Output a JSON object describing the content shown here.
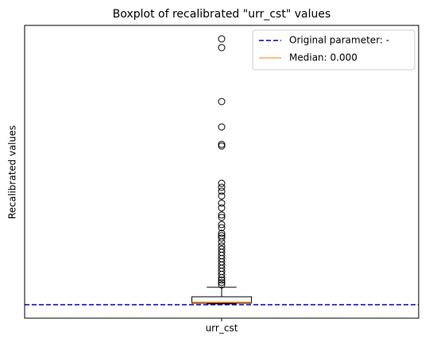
{
  "chart_data": {
    "type": "box",
    "title": "Boxplot of recalibrated \"urr_cst\" values",
    "ylabel": "Recalibrated values",
    "categories": [
      "urr_cst"
    ],
    "ylim": [
      -0.2,
      3.49
    ],
    "box": {
      "whisker_low": -0.02,
      "q1": -0.01,
      "median": 0,
      "q3": 0.07,
      "whisker_high": 0.19,
      "outliers": [
        3.32,
        3.21,
        2.53,
        2.21,
        1.99,
        1.97,
        1.5,
        1.45,
        1.4,
        1.34,
        1.25,
        1.19,
        1.1,
        1.07,
        0.98,
        0.94,
        0.87,
        0.84,
        0.81,
        0.76,
        0.71,
        0.67,
        0.63,
        0.59,
        0.55,
        0.51,
        0.47,
        0.43,
        0.39,
        0.35,
        0.31,
        0.28,
        0.25,
        0.22
      ],
      "color": "#000000",
      "median_color": "#ff7f0e",
      "median_label": "Median: 0.000"
    },
    "reference_line": {
      "label": "Original parameter: -",
      "value": -0.03,
      "color": "#0000cc"
    },
    "legend": "upper right"
  }
}
